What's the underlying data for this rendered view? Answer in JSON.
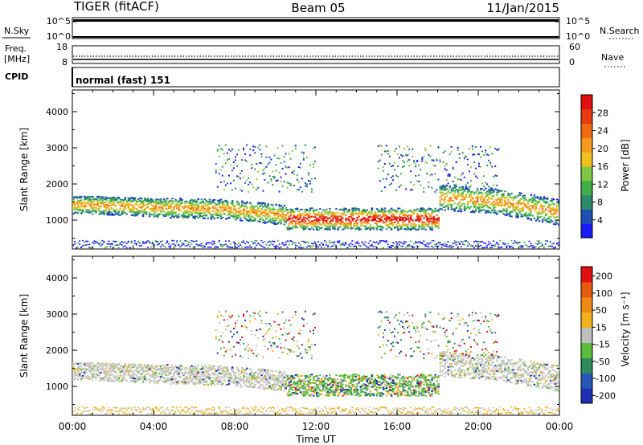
{
  "header": {
    "radar": "TIGER (fitACF)",
    "beam": "Beam 05",
    "date": "11/Jan/2015"
  },
  "strip": {
    "nsky_label": "N.Sky",
    "nsky_ticks": [
      "10^5",
      "10^0"
    ],
    "nsearch_label": "N.Search",
    "freq_label_1": "Freq.",
    "freq_label_2": "[MHz]",
    "freq_ticks": [
      "18",
      "8"
    ],
    "nave_label": "Nave",
    "nave_ticks": [
      "60",
      "0"
    ],
    "cpid_label": "CPID",
    "cpid_value": "normal (fast) 151"
  },
  "chart_data": [
    {
      "type": "heatmap",
      "panel": "power",
      "ylabel": "Slant Range [km]",
      "xlabel": "",
      "ylim": [
        200,
        4600
      ],
      "yticks": [
        "1000",
        "2000",
        "3000",
        "4000"
      ],
      "xlim_hours": [
        0,
        24
      ],
      "colorbar": {
        "label": "Power [dB]",
        "ticks": [
          "4",
          "8",
          "12",
          "16",
          "20",
          "24",
          "28"
        ],
        "range": [
          0,
          32
        ],
        "colors": [
          "#1a1aff",
          "#1f4fb0",
          "#2a8a6a",
          "#3fae4a",
          "#80c843",
          "#f2c01e",
          "#f59a1a",
          "#f06a14",
          "#e83a10",
          "#e01010"
        ]
      }
    },
    {
      "type": "heatmap",
      "panel": "velocity",
      "ylabel": "Slant Range [km]",
      "xlabel": "Time UT",
      "ylim": [
        200,
        4600
      ],
      "yticks": [
        "1000",
        "2000",
        "3000",
        "4000"
      ],
      "xticks": [
        "00:00",
        "04:00",
        "08:00",
        "12:00",
        "16:00",
        "20:00",
        "00:00"
      ],
      "xlim_hours": [
        0,
        24
      ],
      "colorbar": {
        "label": "Velocity [m s⁻¹]",
        "ticks": [
          "200",
          "100",
          "50",
          "15",
          "-15",
          "-50",
          "-100",
          "-200"
        ],
        "colors": [
          "#1e2fb4",
          "#2857b8",
          "#2e8a5a",
          "#5abd3c",
          "#bfbfbf",
          "#f2b21e",
          "#ef8a16",
          "#e85a10",
          "#e01010"
        ]
      }
    }
  ],
  "colors": {
    "scatter_grey": "#c7c7bf",
    "power_core": "#e83a10",
    "power_edge": "#2a6fb0"
  }
}
